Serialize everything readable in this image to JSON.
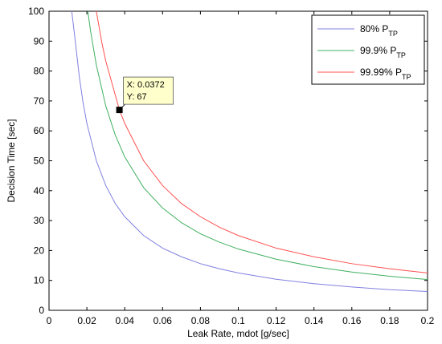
{
  "chart_data": {
    "type": "line",
    "xlabel": "Leak Rate, mdot [g/sec]",
    "ylabel": "Decision Time [sec]",
    "xlim": [
      0,
      0.2
    ],
    "ylim": [
      0,
      100
    ],
    "x_ticks": [
      0,
      0.02,
      0.04,
      0.06,
      0.08,
      0.1,
      0.12,
      0.14,
      0.16,
      0.18,
      0.2
    ],
    "x_tick_labels": [
      "0",
      "0.02",
      "0.04",
      "0.06",
      "0.08",
      "0.1",
      "0.12",
      "0.14",
      "0.16",
      "0.18",
      "0.2"
    ],
    "y_ticks": [
      0,
      10,
      20,
      30,
      40,
      50,
      60,
      70,
      80,
      90,
      100
    ],
    "y_tick_labels": [
      "0",
      "10",
      "20",
      "30",
      "40",
      "50",
      "60",
      "70",
      "80",
      "90",
      "100"
    ],
    "grid": false,
    "legend_position": "top-right",
    "series": [
      {
        "name": "80% P",
        "name_sub": "TP",
        "color": "#8080e0",
        "x": [
          0.012,
          0.014,
          0.016,
          0.018,
          0.02,
          0.025,
          0.03,
          0.035,
          0.04,
          0.05,
          0.06,
          0.07,
          0.08,
          0.09,
          0.1,
          0.12,
          0.14,
          0.16,
          0.18,
          0.2
        ],
        "y": [
          100,
          89.3,
          78.1,
          69.4,
          62.5,
          50,
          41.7,
          35.7,
          31.3,
          25,
          20.8,
          17.9,
          15.6,
          13.9,
          12.5,
          10.4,
          8.9,
          7.8,
          6.9,
          6.3
        ]
      },
      {
        "name": "99.9% P",
        "name_sub": "TP",
        "color": "#40b060",
        "x": [
          0.0205,
          0.022,
          0.025,
          0.03,
          0.035,
          0.04,
          0.05,
          0.06,
          0.07,
          0.08,
          0.09,
          0.1,
          0.12,
          0.14,
          0.16,
          0.18,
          0.2
        ],
        "y": [
          100,
          93.2,
          82,
          68.3,
          58.6,
          51.3,
          41,
          34.2,
          29.3,
          25.6,
          22.8,
          20.5,
          17.1,
          14.6,
          12.8,
          11.4,
          10.3
        ]
      },
      {
        "name": "99.99% P",
        "name_sub": "TP",
        "color": "#ff5050",
        "x": [
          0.025,
          0.028,
          0.03,
          0.0372,
          0.04,
          0.05,
          0.06,
          0.07,
          0.08,
          0.09,
          0.1,
          0.12,
          0.14,
          0.16,
          0.18,
          0.2
        ],
        "y": [
          100,
          89.2,
          83.3,
          67,
          62.5,
          50,
          41.7,
          35.7,
          31.3,
          27.8,
          25,
          20.8,
          17.9,
          15.6,
          13.9,
          12.5
        ]
      }
    ],
    "datatip": {
      "x": 0.0372,
      "y": 67,
      "x_text": "X: 0.0372",
      "y_text": "Y: 67"
    }
  }
}
